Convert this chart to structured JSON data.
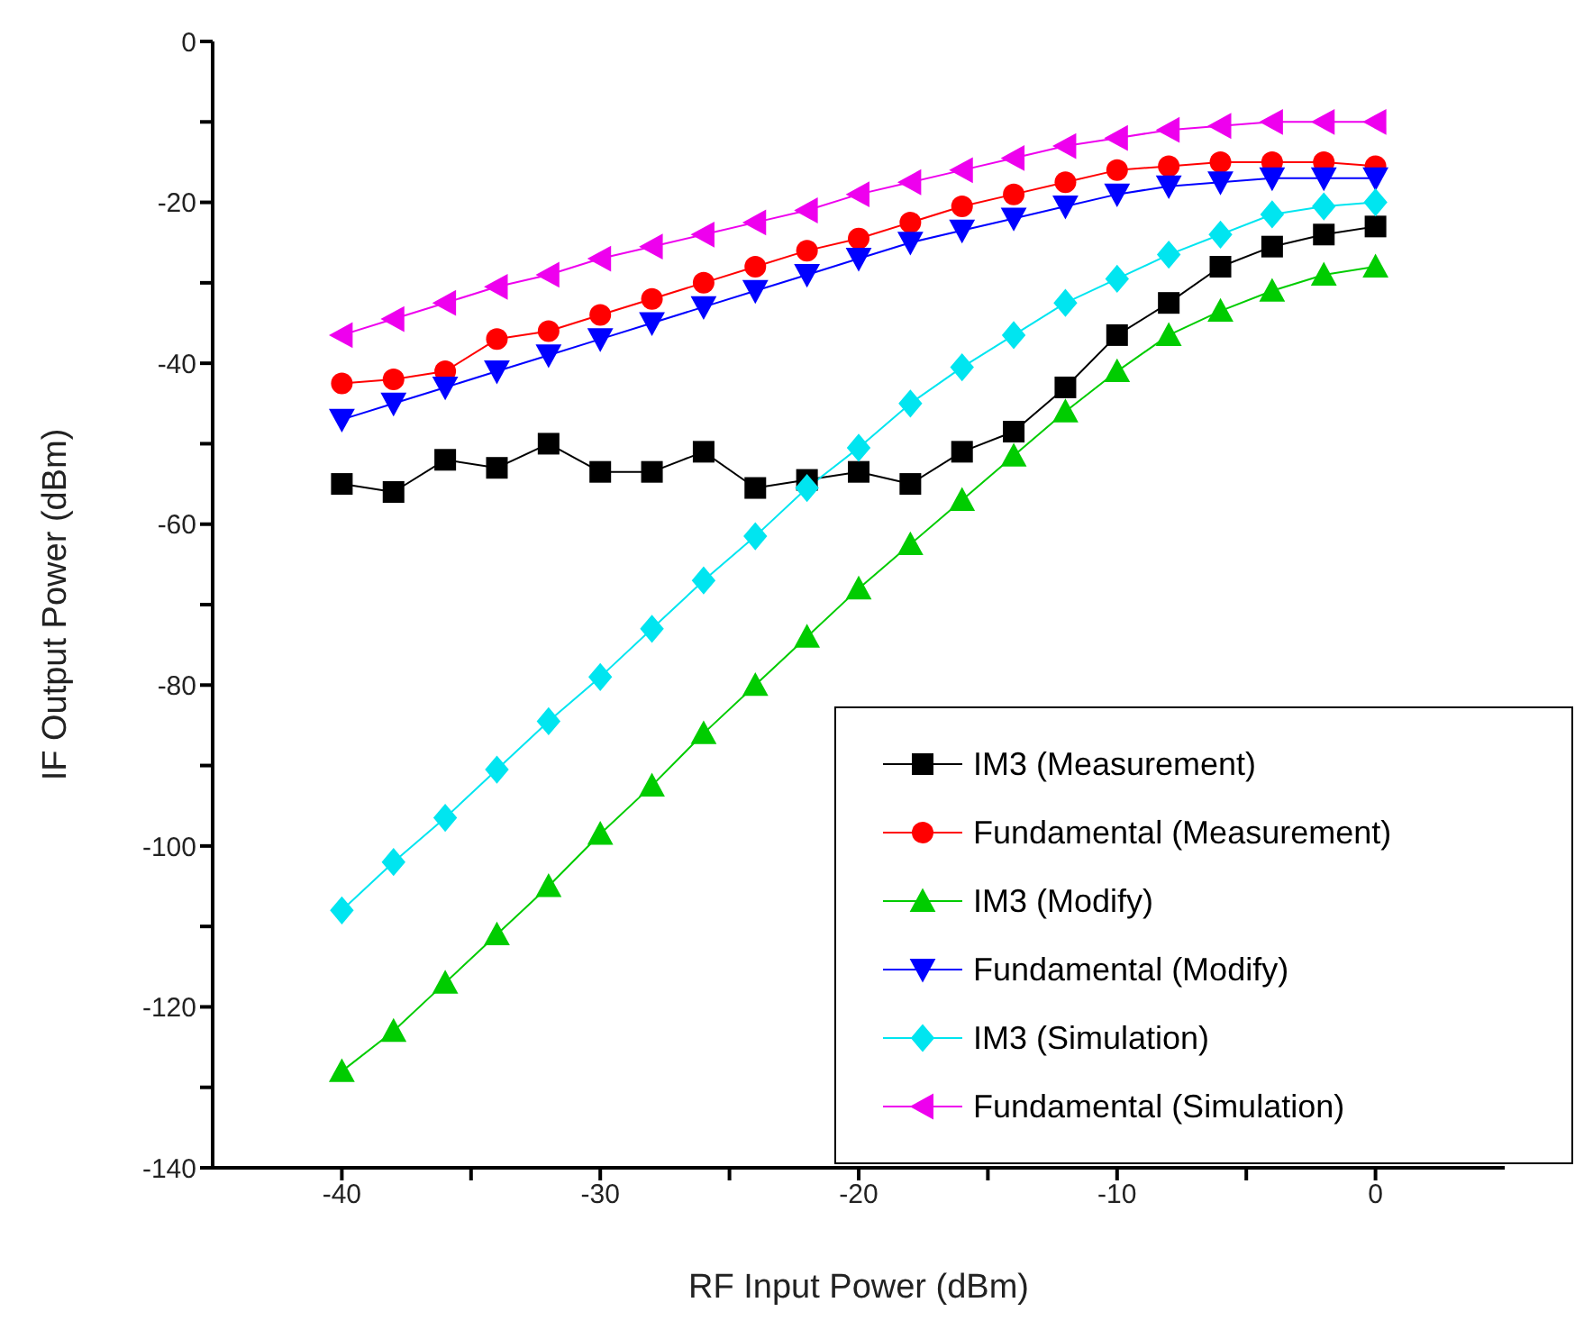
{
  "chart_data": {
    "type": "line",
    "xlabel": "RF Input Power (dBm)",
    "ylabel": "IF Output Power (dBm)",
    "x": [
      -40,
      -38,
      -36,
      -34,
      -32,
      -30,
      -28,
      -26,
      -24,
      -22,
      -20,
      -18,
      -16,
      -14,
      -12,
      -10,
      -8,
      -6,
      -4,
      -2,
      0
    ],
    "xlim": [
      -45,
      5
    ],
    "xticks": [
      -40,
      {
        "value": -35,
        "label": null
      },
      -30,
      {
        "value": -25,
        "label": null
      },
      -20,
      {
        "value": -15,
        "label": null
      },
      -10,
      {
        "value": -5,
        "label": null
      },
      0
    ],
    "ylim": [
      -140,
      0
    ],
    "yticks": [
      -140,
      {
        "value": -130,
        "label": null
      },
      -120,
      {
        "value": -110,
        "label": null
      },
      -100,
      {
        "value": -90,
        "label": null
      },
      -80,
      {
        "value": -70,
        "label": null
      },
      -60,
      {
        "value": -50,
        "label": null
      },
      -40,
      {
        "value": -30,
        "label": null
      },
      -20,
      {
        "value": -10,
        "label": null
      },
      0
    ],
    "grid": false,
    "legend": "bottom right",
    "series": [
      {
        "name": "IM3 (Measurement)",
        "color": "#000000",
        "marker": "square",
        "values": [
          -55,
          -56,
          -52,
          -53,
          -50,
          -53.5,
          -53.5,
          -51,
          -55.5,
          -54.5,
          -53.5,
          -55,
          -51,
          -48.5,
          -43,
          -36.5,
          -32.5,
          -28,
          -25.5,
          -24,
          -23
        ]
      },
      {
        "name": "Fundamental (Measurement)",
        "color": "#ff0000",
        "marker": "circle",
        "values": [
          -42.5,
          -42,
          -41,
          -37,
          -36,
          -34,
          -32,
          -30,
          -28,
          -26,
          -24.5,
          -22.5,
          -20.5,
          -19,
          -17.5,
          -16,
          -15.5,
          -15,
          -15,
          -15,
          -15.5
        ]
      },
      {
        "name": "IM3 (Modify)",
        "color": "#00cc00",
        "marker": "triangle",
        "values": [
          -128,
          -123,
          -117,
          -111,
          -105,
          -98.5,
          -92.5,
          -86,
          -80,
          -74,
          -68,
          -62.5,
          -57,
          -51.5,
          -46,
          -41,
          -36.5,
          -33.5,
          -31,
          -29,
          -28
        ]
      },
      {
        "name": "Fundamental (Modify)",
        "color": "#0000ff",
        "marker": "triangle-down",
        "values": [
          -47,
          -45,
          -43,
          -41,
          -39,
          -37,
          -35,
          -33,
          -31,
          -29,
          -27,
          -25,
          -23.5,
          -22,
          -20.5,
          -19,
          -18,
          -17.5,
          -17,
          -17,
          -17
        ]
      },
      {
        "name": "IM3 (Simulation)",
        "color": "#00e5f0",
        "marker": "diamond",
        "values": [
          -108,
          -102,
          -96.5,
          -90.5,
          -84.5,
          -79,
          -73,
          -67,
          -61.5,
          -55.5,
          -50.5,
          -45,
          -40.5,
          -36.5,
          -32.5,
          -29.5,
          -26.5,
          -24,
          -21.5,
          -20.5,
          -20
        ]
      },
      {
        "name": "Fundamental (Simulation)",
        "color": "#ee00ee",
        "marker": "triangle-left",
        "values": [
          -36.5,
          -34.5,
          -32.5,
          -30.5,
          -29,
          -27,
          -25.5,
          -24,
          -22.5,
          -21,
          -19,
          -17.5,
          -16,
          -14.5,
          -13,
          -12,
          -11,
          -10.5,
          -10,
          -10,
          -10
        ]
      }
    ]
  }
}
